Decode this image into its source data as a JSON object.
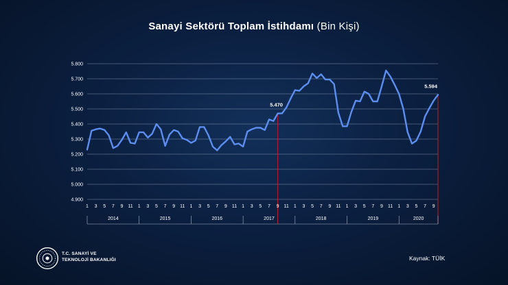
{
  "title": {
    "bold": "Sanayi Sektörü Toplam İstihdamı",
    "light": "(Bin Kişi)"
  },
  "footer": {
    "ministry_line1": "T.C. SANAYİ VE",
    "ministry_line2": "TEKNOLOJİ BAKANLIĞI",
    "source": "Kaynak: TÜİK"
  },
  "colors": {
    "line": "#5b8ef0",
    "marker_line": "#b8202a",
    "grid": "#a9b6cc",
    "text": "#ffffff"
  },
  "chart_data": {
    "type": "line",
    "title": "Sanayi Sektörü Toplam İstihdamı (Bin Kişi)",
    "ylim": [
      4900,
      5800
    ],
    "y_ticks": [
      "4.900",
      "5.000",
      "5.100",
      "5.200",
      "5.300",
      "5.400",
      "5.500",
      "5.600",
      "5.700",
      "5.800"
    ],
    "y_tick_values": [
      4900,
      5000,
      5100,
      5200,
      5300,
      5400,
      5500,
      5600,
      5700,
      5800
    ],
    "years": [
      "2014",
      "2015",
      "2016",
      "2017",
      "2018",
      "2019",
      "2020"
    ],
    "month_ticks": [
      "1",
      "3",
      "5",
      "7",
      "9",
      "11"
    ],
    "month_ticks_last_year": [
      "1",
      "3",
      "5",
      "7",
      "9"
    ],
    "series": [
      {
        "values": [
          5230,
          5355,
          5365,
          5370,
          5360,
          5325,
          5240,
          5255,
          5295,
          5345,
          5275,
          5270,
          5345,
          5345,
          5310,
          5335,
          5400,
          5365,
          5255,
          5330,
          5360,
          5350,
          5305,
          5295,
          5275,
          5290,
          5380,
          5380,
          5325,
          5250,
          5225,
          5260,
          5285,
          5315,
          5265,
          5270,
          5250,
          5350,
          5365,
          5375,
          5375,
          5360,
          5430,
          5420,
          5470,
          5470,
          5510,
          5570,
          5625,
          5620,
          5650,
          5670,
          5735,
          5705,
          5730,
          5695,
          5695,
          5665,
          5475,
          5385,
          5385,
          5480,
          5555,
          5550,
          5615,
          5600,
          5550,
          5550,
          5650,
          5755,
          5715,
          5660,
          5600,
          5500,
          5345,
          5270,
          5290,
          5350,
          5450,
          5505,
          5555,
          5594
        ]
      }
    ],
    "annotations": [
      {
        "label": "5.470",
        "x_index": 44,
        "value": 5470
      },
      {
        "label": "5.594",
        "x_index": 81,
        "value": 5594
      }
    ]
  }
}
